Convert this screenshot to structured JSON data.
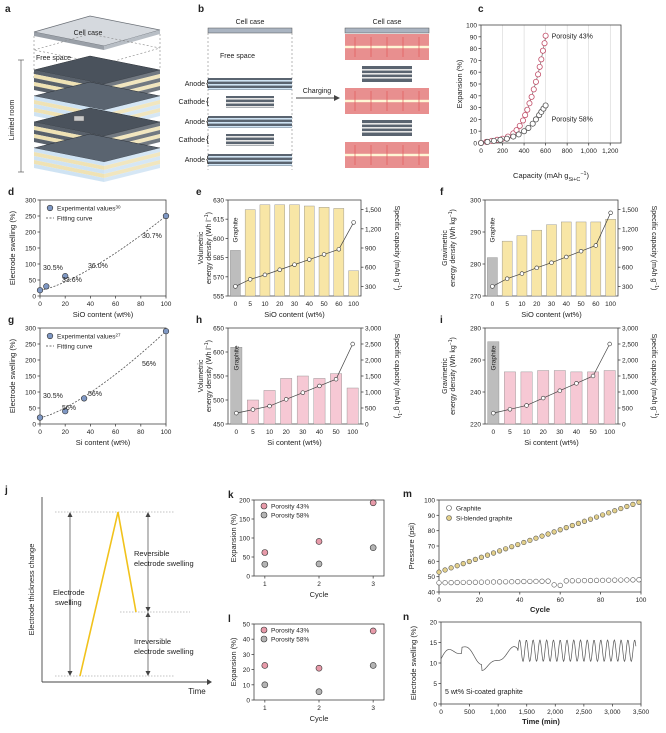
{
  "colors": {
    "bar_yellow": "#f8e6a6",
    "bar_pink": "#f6c8d4",
    "bar_gray": "#bdbdbd",
    "marker_blue": "#7f98c4",
    "marker_pink": "#e79aa9",
    "marker_gray": "#b4b4b4",
    "line_gray": "#666666",
    "anode_blue": "#cfe3f3",
    "stripe": "#efe2b4",
    "red": "#e25b5b",
    "sweep_yellow": "#f1c21b"
  },
  "panel_a": {
    "letter": "a",
    "case": "Cell case",
    "free": "Free space",
    "side": "Limited room"
  },
  "panel_b": {
    "letter": "b",
    "case_left": "Cell case",
    "free": "Free space",
    "case_right": "Cell case",
    "arrow": "Charging",
    "layers": [
      "Anode",
      "Cathode",
      "Anode",
      "Cathode",
      "Anode"
    ]
  },
  "chart_data": [
    {
      "id": "c",
      "type": "scatter",
      "letter": "c",
      "xlabel": "Capacity (mAh g",
      "xlabel_sub": "Si+C",
      "xlabel_sup": "−1",
      "xlabel_end": ")",
      "ylabel": "Expansion (%)",
      "xlim": [
        0,
        1300
      ],
      "ylim": [
        0,
        110
      ],
      "xticks": [
        "0",
        "200",
        "400",
        "600",
        "800",
        "1,000",
        "1,200"
      ],
      "yticks": [
        "0",
        "10",
        "20",
        "30",
        "40",
        "50",
        "60",
        "70",
        "80",
        "90",
        "100"
      ],
      "series": [
        {
          "name": "Porosity 43%",
          "x": [
            0,
            50,
            100,
            150,
            200,
            250,
            300,
            330,
            360,
            390,
            410,
            430,
            450,
            470,
            490,
            510,
            530,
            545,
            560,
            575,
            590,
            600
          ],
          "y": [
            0,
            1,
            2,
            3,
            4,
            6,
            9,
            12,
            16,
            21,
            26,
            31,
            37,
            43,
            50,
            57,
            64,
            71,
            78,
            86,
            93,
            100
          ]
        },
        {
          "name": "Porosity 58%",
          "x": [
            0,
            60,
            120,
            180,
            240,
            300,
            350,
            400,
            440,
            480,
            510,
            540,
            560,
            580,
            600
          ],
          "y": [
            0,
            1,
            2,
            3,
            4,
            6,
            8,
            11,
            14,
            18,
            22,
            26,
            29,
            32,
            35
          ]
        }
      ]
    },
    {
      "id": "d",
      "type": "scatter",
      "letter": "d",
      "xlabel": "SiO content (wt%)",
      "ylabel": "Electrode swelling (%)",
      "xlim": [
        0,
        100
      ],
      "ylim": [
        0,
        300
      ],
      "xticks": [
        "0",
        "20",
        "40",
        "60",
        "80",
        "100"
      ],
      "yticks": [
        "0",
        "50",
        "100",
        "150",
        "200",
        "250",
        "300"
      ],
      "legend": [
        "Experimental values",
        "Fitting curve"
      ],
      "legend_ref": "30",
      "points": {
        "x": [
          0,
          5,
          20,
          100
        ],
        "y": [
          18,
          30,
          62,
          250
        ]
      },
      "labels": [
        "30.5%",
        "33.6%",
        "36.0%",
        "30.7%"
      ]
    },
    {
      "id": "e",
      "type": "bar",
      "letter": "e",
      "categories": [
        "0",
        "5",
        "10",
        "20",
        "30",
        "40",
        "50",
        "60",
        "100"
      ],
      "values": [
        588,
        622,
        626,
        626,
        626,
        625,
        624,
        623,
        571
      ],
      "line": [
        300,
        410,
        480,
        560,
        640,
        720,
        800,
        880,
        1300
      ],
      "xlabel": "SiO content (wt%)",
      "ylabel": "Volumetric energy density (Wh l",
      "ylabel_sup": "−1",
      "ylabel_end": ")",
      "y2label": "Specific capacity (mAh g",
      "y2label_sup": "−1",
      "y2label_end": ")",
      "ylim": [
        550,
        630
      ],
      "y2lim": [
        150,
        1650
      ],
      "yticks": [
        "555",
        "570",
        "585",
        "600",
        "615",
        "630"
      ],
      "y2ticks": [
        "300",
        "600",
        "900",
        "1,200",
        "1,500"
      ],
      "graphite": "Graphite"
    },
    {
      "id": "f",
      "type": "bar",
      "letter": "f",
      "categories": [
        "0",
        "5",
        "10",
        "20",
        "30",
        "40",
        "50",
        "60",
        "100"
      ],
      "values": [
        284,
        290,
        292,
        294,
        296,
        297,
        297,
        297,
        298
      ],
      "line": [
        300,
        420,
        500,
        590,
        670,
        760,
        850,
        940,
        1450
      ],
      "xlabel": "SiO content (wt%)",
      "ylabel": "Gravimetric energy density (Wh kg",
      "ylabel_sup": "−1",
      "ylabel_end": ")",
      "y2label": "Specific capacity (mAh g",
      "y2label_sup": "−1",
      "y2label_end": ")",
      "ylim": [
        270,
        305
      ],
      "y2lim": [
        150,
        1650
      ],
      "yticks": [
        "270",
        "280",
        "290",
        "300"
      ],
      "y2ticks": [
        "300",
        "600",
        "900",
        "1,200",
        "1,500"
      ],
      "graphite": "Graphite"
    },
    {
      "id": "g",
      "type": "scatter",
      "letter": "g",
      "xlabel": "Si content (wt%)",
      "ylabel": "Electrode swelling (%)",
      "xlim": [
        0,
        100
      ],
      "ylim": [
        0,
        300
      ],
      "xticks": [
        "0",
        "20",
        "40",
        "60",
        "80",
        "100"
      ],
      "yticks": [
        "0",
        "50",
        "100",
        "150",
        "200",
        "250",
        "300"
      ],
      "legend": [
        "Experimental values",
        "Fitting curve"
      ],
      "legend_ref": "27",
      "points": {
        "x": [
          0,
          20,
          35,
          100
        ],
        "y": [
          20,
          40,
          80,
          290
        ]
      },
      "labels": [
        "30.5%",
        "56%",
        "56%",
        "56%"
      ]
    },
    {
      "id": "h",
      "type": "bar",
      "letter": "h",
      "categories": [
        "0",
        "5",
        "10",
        "20",
        "30",
        "40",
        "50",
        "100"
      ],
      "values": [
        610,
        500,
        520,
        545,
        550,
        545,
        555,
        525
      ],
      "line": [
        340,
        450,
        560,
        770,
        980,
        1190,
        1400,
        2500
      ],
      "xlabel": "Si content (wt%)",
      "ylabel": "Volumetric energy density (Wh l",
      "ylabel_sup": "−1",
      "ylabel_end": ")",
      "y2label": "Specific capacity (mAh g",
      "y2label_sup": "−1",
      "y2label_end": ")",
      "ylim": [
        450,
        650
      ],
      "y2lim": [
        0,
        3000
      ],
      "yticks": [
        "450",
        "500",
        "550",
        "600",
        "650"
      ],
      "y2ticks": [
        "0",
        "500",
        "1,000",
        "1,500",
        "2,000",
        "2,500",
        "3,000"
      ],
      "graphite": "Graphite"
    },
    {
      "id": "i",
      "type": "bar",
      "letter": "i",
      "categories": [
        "0",
        "5",
        "10",
        "20",
        "30",
        "40",
        "50",
        "100"
      ],
      "values": [
        280,
        258,
        258,
        259,
        259,
        258,
        258,
        259
      ],
      "line": [
        340,
        460,
        580,
        810,
        1040,
        1270,
        1500,
        2500
      ],
      "xlabel": "Si content (wt%)",
      "ylabel": "Gravimetric energy density (Wh kg",
      "ylabel_sup": "−1",
      "ylabel_end": ")",
      "y2label": "Specific capacity (mAh g",
      "y2label_sup": "−1",
      "y2label_end": ")",
      "ylim": [
        220,
        290
      ],
      "y2lim": [
        0,
        3000
      ],
      "yticks": [
        "220",
        "240",
        "260",
        "280"
      ],
      "y2ticks": [
        "0",
        "500",
        "1,000",
        "1,500",
        "2,000",
        "2,500",
        "3,000"
      ],
      "graphite": "Graphite"
    },
    {
      "id": "k",
      "type": "scatter",
      "letter": "k",
      "xlabel": "Cycle",
      "ylabel": "Expansion (%)",
      "xlim": [
        0.8,
        3.2
      ],
      "ylim": [
        0,
        220
      ],
      "xticks": [
        "1",
        "2",
        "3"
      ],
      "yticks": [
        "0",
        "50",
        "100",
        "150",
        "200"
      ],
      "series": [
        {
          "name": "Porosity 43%",
          "x": [
            1,
            2,
            3
          ],
          "y": [
            68,
            100,
            212
          ]
        },
        {
          "name": "Porosity 58%",
          "x": [
            1,
            2,
            3
          ],
          "y": [
            34,
            35,
            82
          ]
        }
      ]
    },
    {
      "id": "l",
      "type": "scatter",
      "letter": "l",
      "xlabel": "Cycle",
      "ylabel": "Expansion (%)",
      "xlim": [
        0.8,
        3.2
      ],
      "ylim": [
        0,
        55
      ],
      "xticks": [
        "1",
        "2",
        "3"
      ],
      "yticks": [
        "0",
        "10",
        "20",
        "30",
        "40",
        "50"
      ],
      "series": [
        {
          "name": "Porosity 43%",
          "x": [
            1,
            2,
            3
          ],
          "y": [
            25,
            23,
            50
          ]
        },
        {
          "name": "Porosity 58%",
          "x": [
            1,
            2,
            3
          ],
          "y": [
            11,
            6,
            25
          ]
        }
      ]
    },
    {
      "id": "m",
      "type": "scatter",
      "letter": "m",
      "xlabel": "Cycle",
      "ylabel": "Pressure (psi)",
      "xlim": [
        0,
        100
      ],
      "ylim": [
        40,
        100
      ],
      "xticks": [
        "0",
        "20",
        "40",
        "60",
        "80",
        "100"
      ],
      "yticks": [
        "40",
        "50",
        "60",
        "70",
        "80",
        "90",
        "100"
      ],
      "series": [
        {
          "name": "Graphite",
          "x": [
            0,
            100
          ],
          "y": [
            46,
            48
          ],
          "dip": {
            "x": 59,
            "y": 44
          }
        },
        {
          "name": "Si-blended graphite",
          "x": [
            0,
            100
          ],
          "y": [
            53,
            99
          ]
        }
      ]
    },
    {
      "id": "n",
      "type": "line",
      "letter": "n",
      "xlabel": "Time (min)",
      "ylabel": "Electrode swelling (%)",
      "xlim": [
        0,
        3900
      ],
      "ylim": [
        0,
        20
      ],
      "xticks": [
        "0",
        "500",
        "1,000",
        "1,500",
        "2,000",
        "2,500",
        "3,000",
        "3,500"
      ],
      "yticks": [
        "0",
        "5",
        "10",
        "15",
        "20"
      ],
      "annotation": "5 wt% Si-coated graphite"
    }
  ],
  "panel_j": {
    "letter": "j",
    "ylabel": "Electrode thickness change",
    "xlabel": "Time",
    "left": "Electrode swelling",
    "upper": "Reversible electrode swelling",
    "lower": "Irreversible electrode swelling"
  }
}
